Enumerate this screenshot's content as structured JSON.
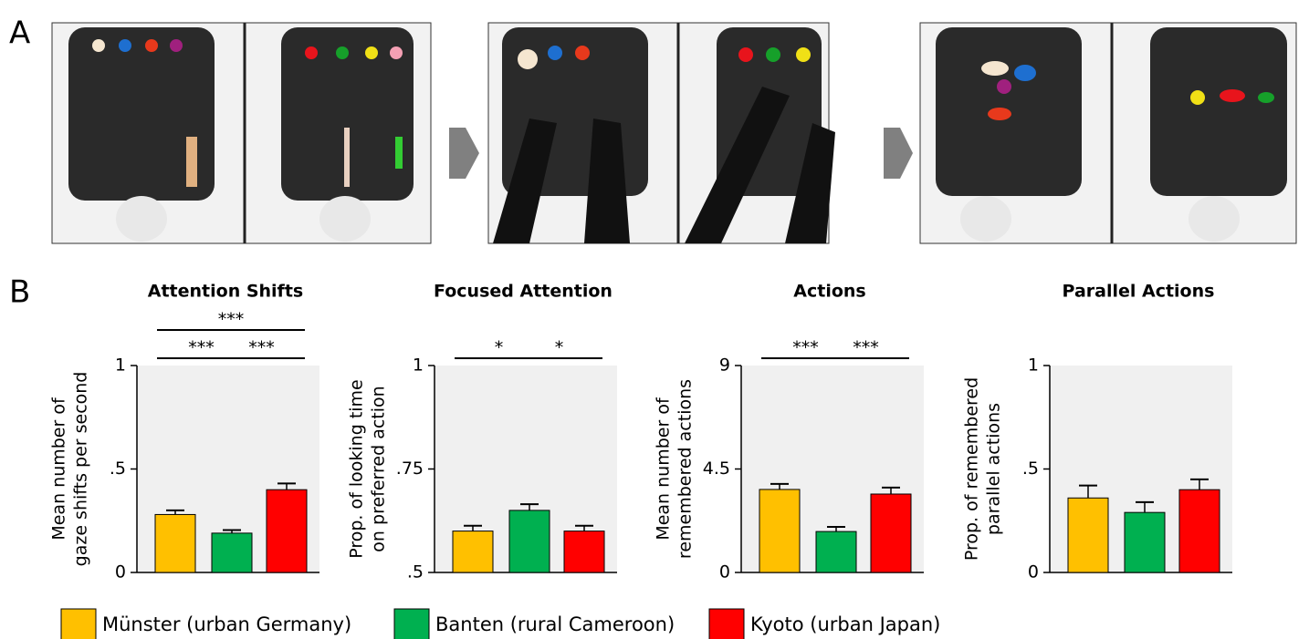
{
  "panel_labels": [
    "A",
    "B"
  ],
  "legend": {
    "series": [
      {
        "name": "Münster (urban Germany)",
        "color": "#ffc000"
      },
      {
        "name": "Banten (rural Cameroon)",
        "color": "#00b050"
      },
      {
        "name": "Kyoto (urban Japan)",
        "color": "#ff0000"
      }
    ]
  },
  "chart_data": [
    {
      "type": "bar",
      "title": "Attention Shifts",
      "y_label": [
        "Mean number of",
        "gaze shifts per second"
      ],
      "values": [
        0.28,
        0.19,
        0.4
      ],
      "errors": [
        0.02,
        0.015,
        0.03
      ],
      "ylim": [
        0,
        1
      ],
      "yticks": [
        0,
        {
          "value": 0.5,
          "label": ".5"
        },
        1
      ],
      "significance": [
        {
          "label": "***",
          "from": 0,
          "to": 2
        },
        {
          "label": "***",
          "from": 0,
          "to": 1
        },
        {
          "label": "***",
          "from": 1,
          "to": 2
        }
      ]
    },
    {
      "type": "bar",
      "title": "Focused Attention",
      "y_label": [
        "Prop. of looking time",
        "on preferred action"
      ],
      "values": [
        0.6,
        0.65,
        0.6
      ],
      "errors": [
        0.013,
        0.015,
        0.013
      ],
      "ylim": [
        0.5,
        1
      ],
      "yticks": [
        {
          "value": 0.5,
          "label": ".5"
        },
        {
          "value": 0.75,
          "label": ".75"
        },
        1
      ],
      "significance": [
        {
          "label": "*",
          "from": 0,
          "to": 1
        },
        {
          "label": "*",
          "from": 1,
          "to": 2
        }
      ]
    },
    {
      "type": "bar",
      "title": "Actions",
      "y_label": [
        "Mean number of",
        "remembered actions"
      ],
      "values": [
        3.61,
        1.78,
        3.41
      ],
      "errors": [
        0.24,
        0.2,
        0.28
      ],
      "ylim": [
        0,
        9
      ],
      "yticks": [
        0,
        4.5,
        9
      ],
      "significance": [
        {
          "label": "***",
          "from": 0,
          "to": 1
        },
        {
          "label": "***",
          "from": 1,
          "to": 2
        }
      ]
    },
    {
      "type": "bar",
      "title": "Parallel Actions",
      "y_label": [
        "Prop. of remembered",
        "parallel actions"
      ],
      "values": [
        0.36,
        0.29,
        0.4
      ],
      "errors": [
        0.06,
        0.05,
        0.05
      ],
      "ylim": [
        0,
        1
      ],
      "yticks": [
        0,
        {
          "value": 0.5,
          "label": ".5"
        },
        1
      ],
      "significance": []
    }
  ]
}
